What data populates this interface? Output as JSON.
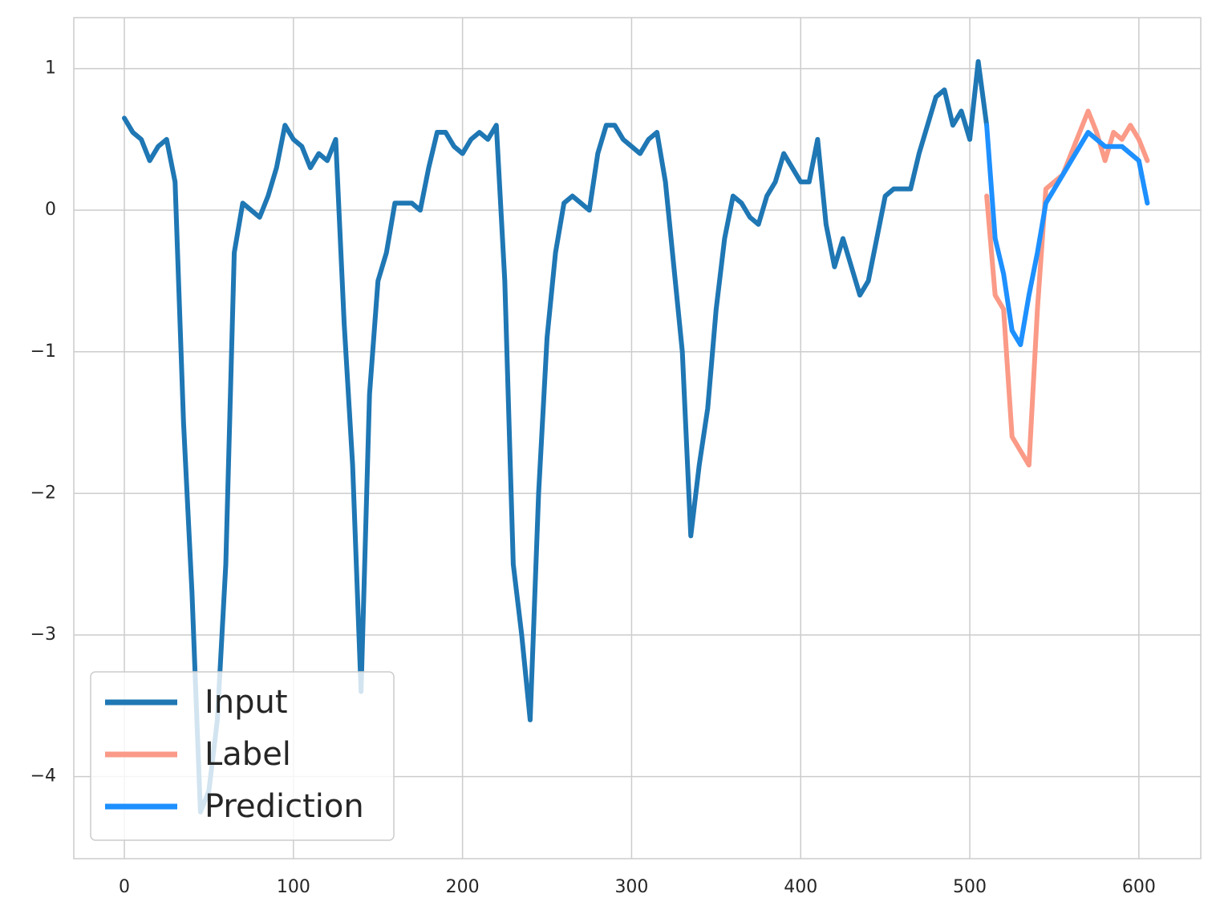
{
  "chart_data": {
    "type": "line",
    "xlim": [
      -29.9,
      636.6
    ],
    "ylim": [
      -4.58,
      1.36
    ],
    "xticks": [
      0,
      100,
      200,
      300,
      400,
      500,
      600
    ],
    "yticks": [
      {
        "value": -4,
        "label": "−4"
      },
      {
        "value": -3,
        "label": "−3"
      },
      {
        "value": -2,
        "label": "−2"
      },
      {
        "value": -1,
        "label": "−1"
      },
      0,
      1
    ],
    "grid": true,
    "legend": "lower left",
    "series": [
      {
        "name": "Input",
        "color": "#1f77b4",
        "x": [
          0,
          5,
          10,
          15,
          20,
          25,
          30,
          35,
          40,
          45,
          50,
          55,
          60,
          65,
          70,
          75,
          80,
          85,
          90,
          95,
          100,
          105,
          110,
          115,
          120,
          125,
          130,
          135,
          140,
          145,
          150,
          155,
          160,
          165,
          170,
          175,
          180,
          185,
          190,
          195,
          200,
          205,
          210,
          215,
          220,
          225,
          230,
          235,
          240,
          245,
          250,
          255,
          260,
          265,
          270,
          275,
          280,
          285,
          290,
          295,
          300,
          305,
          310,
          315,
          320,
          325,
          330,
          335,
          340,
          345,
          350,
          355,
          360,
          365,
          370,
          375,
          380,
          385,
          390,
          395,
          400,
          405,
          410,
          415,
          420,
          425,
          430,
          435,
          440,
          445,
          450,
          455,
          460,
          465,
          470,
          475,
          480,
          485,
          490,
          495,
          500,
          505,
          510
        ],
        "values": [
          0.65,
          0.55,
          0.5,
          0.35,
          0.45,
          0.5,
          0.2,
          -1.5,
          -2.7,
          -4.25,
          -4.1,
          -3.6,
          -2.5,
          -0.3,
          0.05,
          0,
          -0.05,
          0.1,
          0.3,
          0.6,
          0.5,
          0.45,
          0.3,
          0.4,
          0.35,
          0.5,
          -0.8,
          -1.8,
          -3.4,
          -1.3,
          -0.5,
          -0.3,
          0.05,
          0.05,
          0.05,
          0,
          0.3,
          0.55,
          0.55,
          0.45,
          0.4,
          0.5,
          0.55,
          0.5,
          0.6,
          -0.5,
          -2.5,
          -3,
          -3.6,
          -2,
          -0.9,
          -0.3,
          0.05,
          0.1,
          0.05,
          0,
          0.4,
          0.6,
          0.6,
          0.5,
          0.45,
          0.4,
          0.5,
          0.55,
          0.2,
          -0.4,
          -1,
          -2.3,
          -1.8,
          -1.4,
          -0.7,
          -0.2,
          0.1,
          0.05,
          -0.05,
          -0.1,
          0.1,
          0.2,
          0.4,
          0.3,
          0.2,
          0.2,
          0.5,
          -0.1,
          -0.4,
          -0.2,
          -0.4,
          -0.6,
          -0.5,
          -0.2,
          0.1,
          0.15,
          0.15,
          0.15,
          0.4,
          0.6,
          0.8,
          0.85,
          0.6,
          0.7,
          0.5,
          1.05,
          0.6
        ]
      },
      {
        "name": "Label",
        "color": "#fa9a87",
        "x": [
          510,
          515,
          520,
          525,
          530,
          535,
          540,
          545,
          550,
          555,
          560,
          565,
          570,
          575,
          580,
          585,
          590,
          595,
          600,
          605
        ],
        "values": [
          0.1,
          -0.6,
          -0.7,
          -1.6,
          -1.7,
          -1.8,
          -0.7,
          0.15,
          0.2,
          0.25,
          0.4,
          0.55,
          0.7,
          0.55,
          0.35,
          0.55,
          0.5,
          0.6,
          0.5,
          0.35
        ]
      },
      {
        "name": "Prediction",
        "color": "#1e90ff",
        "x": [
          510,
          515,
          520,
          525,
          530,
          535,
          540,
          545,
          550,
          555,
          560,
          565,
          570,
          575,
          580,
          585,
          590,
          595,
          600,
          605
        ],
        "values": [
          0.6,
          -0.2,
          -0.45,
          -0.85,
          -0.95,
          -0.6,
          -0.3,
          0.05,
          0.15,
          0.25,
          0.35,
          0.45,
          0.55,
          0.5,
          0.45,
          0.45,
          0.45,
          0.4,
          0.35,
          0.05
        ]
      }
    ]
  }
}
